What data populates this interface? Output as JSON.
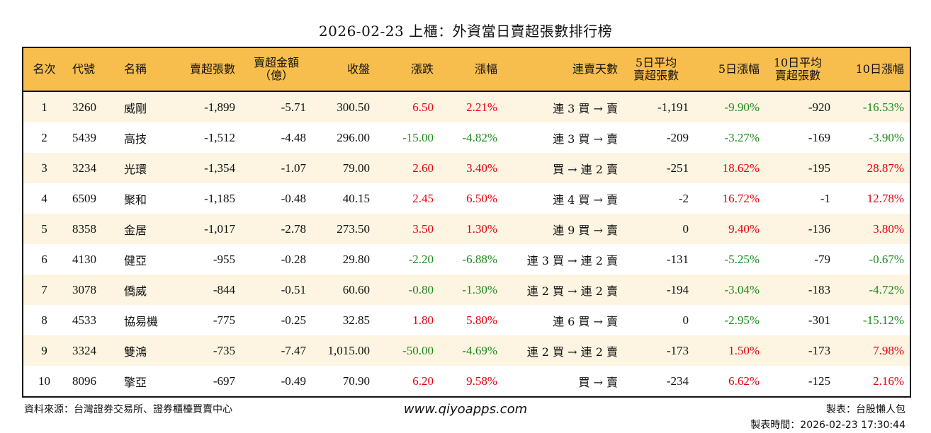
{
  "title": "2026-02-23 上櫃：外資當日賣超張數排行榜",
  "colors": {
    "header_bg": "#f7be4e",
    "row_alt_bg": "#fdf4e2",
    "up": "#e3000f",
    "down": "#1c8a1c"
  },
  "headers": [
    "名次",
    "代號",
    "名稱",
    "賣超張數",
    "賣超金額\n（億）",
    "收盤",
    "漲跌",
    "漲幅",
    "連賣天數",
    "5日平均\n賣超張數",
    "5日漲幅",
    "10日平均\n賣超張數",
    "10日漲幅"
  ],
  "rows": [
    [
      "1",
      "3260",
      "威剛",
      "-1,899",
      "-5.71",
      "300.50",
      "6.50",
      "2.21%",
      "連 3 買 → 賣",
      "-1,191",
      "-9.90%",
      "-920",
      "-16.53%"
    ],
    [
      "2",
      "5439",
      "高技",
      "-1,512",
      "-4.48",
      "296.00",
      "-15.00",
      "-4.82%",
      "連 3 買 → 賣",
      "-209",
      "-3.27%",
      "-169",
      "-3.90%"
    ],
    [
      "3",
      "3234",
      "光環",
      "-1,354",
      "-1.07",
      "79.00",
      "2.60",
      "3.40%",
      "買 → 連 2 賣",
      "-251",
      "18.62%",
      "-195",
      "28.87%"
    ],
    [
      "4",
      "6509",
      "聚和",
      "-1,185",
      "-0.48",
      "40.15",
      "2.45",
      "6.50%",
      "連 4 買 → 賣",
      "-2",
      "16.72%",
      "-1",
      "12.78%"
    ],
    [
      "5",
      "8358",
      "金居",
      "-1,017",
      "-2.78",
      "273.50",
      "3.50",
      "1.30%",
      "連 9 買 → 賣",
      "0",
      "9.40%",
      "-136",
      "3.80%"
    ],
    [
      "6",
      "4130",
      "健亞",
      "-955",
      "-0.28",
      "29.80",
      "-2.20",
      "-6.88%",
      "連 3 買 → 連 2 賣",
      "-131",
      "-5.25%",
      "-79",
      "-0.67%"
    ],
    [
      "7",
      "3078",
      "僑威",
      "-844",
      "-0.51",
      "60.60",
      "-0.80",
      "-1.30%",
      "連 2 買 → 連 2 賣",
      "-194",
      "-3.04%",
      "-183",
      "-4.72%"
    ],
    [
      "8",
      "4533",
      "協易機",
      "-775",
      "-0.25",
      "32.85",
      "1.80",
      "5.80%",
      "連 6 買 → 賣",
      "0",
      "-2.95%",
      "-301",
      "-15.12%"
    ],
    [
      "9",
      "3324",
      "雙鴻",
      "-735",
      "-7.47",
      "1,015.00",
      "-50.00",
      "-4.69%",
      "連 2 買 → 連 2 賣",
      "-173",
      "1.50%",
      "-173",
      "7.98%"
    ],
    [
      "10",
      "8096",
      "擎亞",
      "-697",
      "-0.49",
      "70.90",
      "6.20",
      "9.58%",
      "買 → 賣",
      "-234",
      "6.62%",
      "-125",
      "2.16%"
    ]
  ],
  "footer": {
    "source": "資料來源：台灣證券交易所、證券櫃檯買賣中心",
    "website": "www.qiyoapps.com",
    "maker": "製表：台股懶人包",
    "made_time": "製表時間：2026-02-23 17:30:44"
  }
}
